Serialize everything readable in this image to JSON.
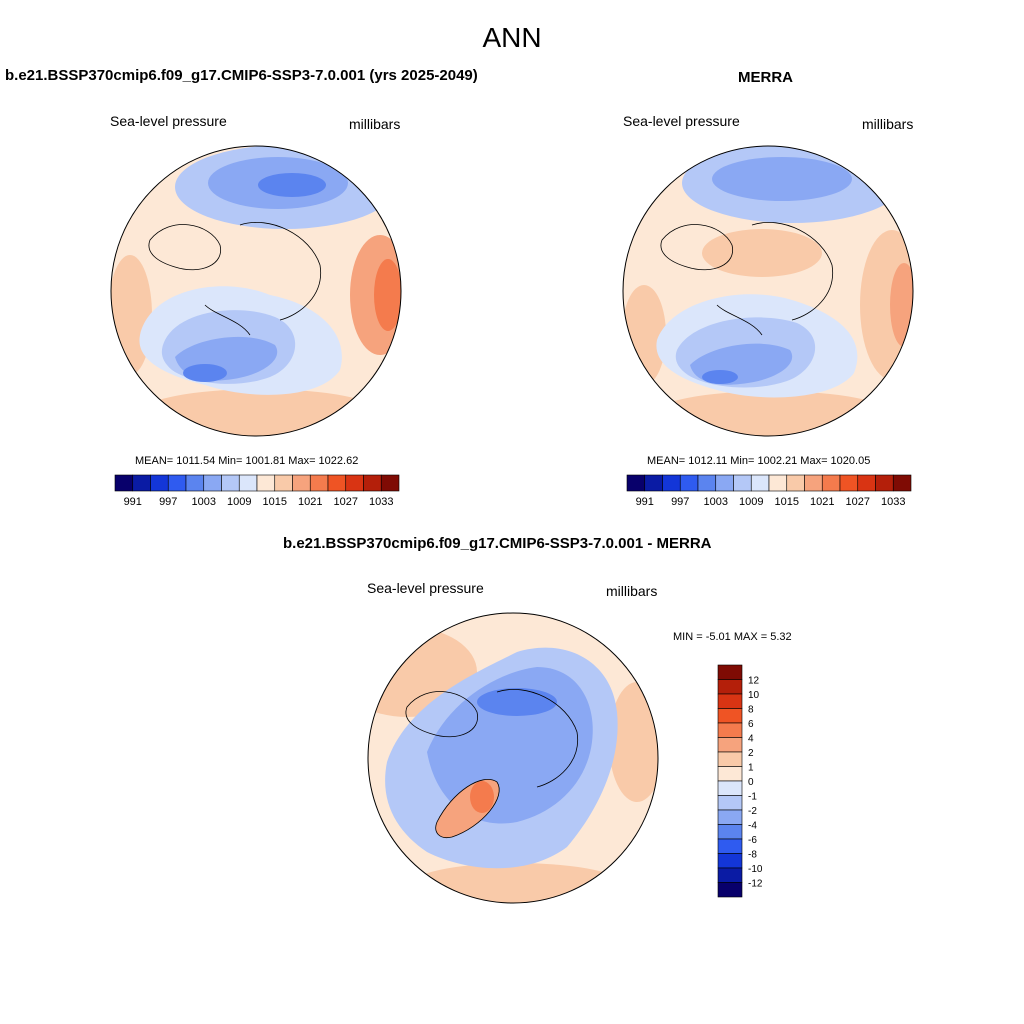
{
  "page": {
    "title": "ANN"
  },
  "panels": {
    "model": {
      "title": "b.e21.BSSP370cmip6.f09_g17.CMIP6-SSP3-7.0.001 (yrs 2025-2049)",
      "variable": "Sea-level pressure",
      "units": "millibars",
      "stats": "MEAN= 1011.54  Min= 1001.81  Max= 1022.62"
    },
    "obs": {
      "title": "MERRA",
      "variable": "Sea-level pressure",
      "units": "millibars",
      "stats": "MEAN= 1012.11  Min= 1002.21  Max= 1020.05"
    },
    "diff": {
      "title": "b.e21.BSSP370cmip6.f09_g17.CMIP6-SSP3-7.0.001 - MERRA",
      "variable": "Sea-level pressure",
      "units": "millibars",
      "stats": "MIN =  -5.01 MAX =   5.32"
    }
  },
  "colorbars": {
    "abs_colors": [
      "#08006b",
      "#0a1ba4",
      "#1336d8",
      "#2f5bf0",
      "#5b84ef",
      "#8aa8f3",
      "#b4c8f7",
      "#dbe6fb",
      "#fde8d6",
      "#f9caa9",
      "#f6a37d",
      "#f47b4d",
      "#ef5424",
      "#d93413",
      "#b41f0a",
      "#7f0b04"
    ],
    "abs_labels": [
      "991",
      "997",
      "1003",
      "1009",
      "1015",
      "1021",
      "1027",
      "1033"
    ],
    "diff_colors": [
      "#7f0b04",
      "#b41f0a",
      "#d93413",
      "#ef5424",
      "#f47b4d",
      "#f6a37d",
      "#f9caa9",
      "#fde8d6",
      "#dbe6fb",
      "#b4c8f7",
      "#8aa8f3",
      "#5b84ef",
      "#2f5bf0",
      "#1336d8",
      "#0a1ba4",
      "#08006b"
    ],
    "diff_labels": [
      "12",
      "10",
      "8",
      "6",
      "4",
      "2",
      "1",
      "0",
      "-1",
      "-2",
      "-4",
      "-6",
      "-8",
      "-10",
      "-12"
    ]
  }
}
